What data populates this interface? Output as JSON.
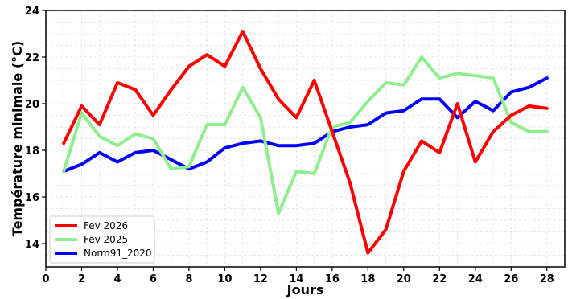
{
  "chart_data": {
    "type": "line",
    "title": "",
    "xlabel": "Jours",
    "ylabel": "Température minimale (°C)",
    "xlim": [
      0,
      29
    ],
    "ylim": [
      13,
      24
    ],
    "xticks": [
      0,
      2,
      4,
      6,
      8,
      10,
      12,
      14,
      16,
      18,
      20,
      22,
      24,
      26,
      28
    ],
    "yticks": [
      14,
      16,
      18,
      20,
      22,
      24
    ],
    "grid": true,
    "legend": "bottom-left",
    "x": [
      1,
      2,
      3,
      4,
      5,
      6,
      7,
      8,
      9,
      10,
      11,
      12,
      13,
      14,
      15,
      16,
      17,
      18,
      19,
      20,
      21,
      22,
      23,
      24,
      25,
      26,
      27,
      28
    ],
    "series": [
      {
        "name": "Fev 2026",
        "color": "#ff0000",
        "values": [
          18.3,
          19.9,
          19.1,
          20.9,
          20.6,
          19.5,
          20.6,
          21.6,
          22.1,
          21.6,
          23.1,
          21.5,
          20.2,
          19.4,
          21.0,
          18.8,
          16.6,
          13.6,
          14.6,
          17.1,
          18.4,
          17.9,
          20.0,
          17.5,
          18.8,
          19.5,
          19.9,
          19.8
        ]
      },
      {
        "name": "Fev 2025",
        "color": "#90ee90",
        "values": [
          17.1,
          19.6,
          18.6,
          18.2,
          18.7,
          18.5,
          17.2,
          17.3,
          19.1,
          19.1,
          20.7,
          19.4,
          15.3,
          17.1,
          17.0,
          19.0,
          19.2,
          20.1,
          20.9,
          20.8,
          22.0,
          21.1,
          21.3,
          21.2,
          21.1,
          19.2,
          18.8,
          18.8
        ]
      },
      {
        "name": "Norm91_2020",
        "color": "#0000ff",
        "values": [
          17.1,
          17.4,
          17.9,
          17.5,
          17.9,
          18.0,
          17.6,
          17.2,
          17.5,
          18.1,
          18.3,
          18.4,
          18.2,
          18.2,
          18.3,
          18.8,
          19.0,
          19.1,
          19.6,
          19.7,
          20.2,
          20.2,
          19.4,
          20.1,
          19.7,
          20.5,
          20.7,
          21.1
        ]
      }
    ]
  }
}
